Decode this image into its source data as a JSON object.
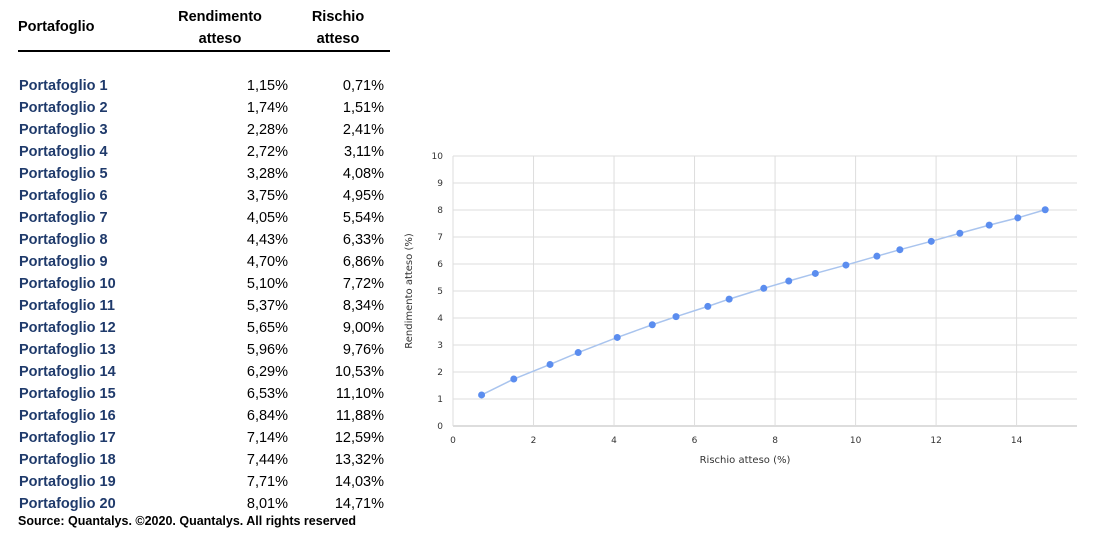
{
  "table": {
    "headers": {
      "name": "Portafoglio",
      "return": [
        "Rendimento",
        "atteso"
      ],
      "risk": [
        "Rischio",
        "atteso"
      ]
    },
    "rows": [
      {
        "name": "Portafoglio 1",
        "return": "1,15%",
        "risk": "0,71%"
      },
      {
        "name": "Portafoglio 2",
        "return": "1,74%",
        "risk": "1,51%"
      },
      {
        "name": "Portafoglio 3",
        "return": "2,28%",
        "risk": "2,41%"
      },
      {
        "name": "Portafoglio 4",
        "return": "2,72%",
        "risk": "3,11%"
      },
      {
        "name": "Portafoglio 5",
        "return": "3,28%",
        "risk": "4,08%"
      },
      {
        "name": "Portafoglio 6",
        "return": "3,75%",
        "risk": "4,95%"
      },
      {
        "name": "Portafoglio 7",
        "return": "4,05%",
        "risk": "5,54%"
      },
      {
        "name": "Portafoglio 8",
        "return": "4,43%",
        "risk": "6,33%"
      },
      {
        "name": "Portafoglio 9",
        "return": "4,70%",
        "risk": "6,86%"
      },
      {
        "name": "Portafoglio 10",
        "return": "5,10%",
        "risk": "7,72%"
      },
      {
        "name": "Portafoglio 11",
        "return": "5,37%",
        "risk": "8,34%"
      },
      {
        "name": "Portafoglio 12",
        "return": "5,65%",
        "risk": "9,00%"
      },
      {
        "name": "Portafoglio 13",
        "return": "5,96%",
        "risk": "9,76%"
      },
      {
        "name": "Portafoglio 14",
        "return": "6,29%",
        "risk": "10,53%"
      },
      {
        "name": "Portafoglio 15",
        "return": "6,53%",
        "risk": "11,10%"
      },
      {
        "name": "Portafoglio 16",
        "return": "6,84%",
        "risk": "11,88%"
      },
      {
        "name": "Portafoglio 17",
        "return": "7,14%",
        "risk": "12,59%"
      },
      {
        "name": "Portafoglio 18",
        "return": "7,44%",
        "risk": "13,32%"
      },
      {
        "name": "Portafoglio 19",
        "return": "7,71%",
        "risk": "14,03%"
      },
      {
        "name": "Portafoglio 20",
        "return": "8,01%",
        "risk": "14,71%"
      }
    ],
    "source": "Source: Quantalys. ©2020. Quantalys. All rights reserved"
  },
  "chart_data": {
    "type": "line",
    "xlabel": "Rischio atteso (%)",
    "ylabel": "Rendimento atteso (%)",
    "xlim": [
      0,
      15.5
    ],
    "ylim": [
      0,
      10
    ],
    "xticks": [
      0,
      2,
      4,
      6,
      8,
      10,
      12,
      14
    ],
    "yticks": [
      0,
      1,
      2,
      3,
      4,
      5,
      6,
      7,
      8,
      9,
      10
    ],
    "grid": true,
    "series": [
      {
        "x": [
          0.71,
          1.51,
          2.41,
          3.11,
          4.08,
          4.95,
          5.54,
          6.33,
          6.86,
          7.72,
          8.34,
          9.0,
          9.76,
          10.53,
          11.1,
          11.88,
          12.59,
          13.32,
          14.03,
          14.71
        ],
        "y": [
          1.15,
          1.74,
          2.28,
          2.72,
          3.28,
          3.75,
          4.05,
          4.43,
          4.7,
          5.1,
          5.37,
          5.65,
          5.96,
          6.29,
          6.53,
          6.84,
          7.14,
          7.44,
          7.71,
          8.01
        ]
      }
    ],
    "colors": {
      "line": "#a9c4ee",
      "point": "#5b8def",
      "grid": "#dddddd",
      "axis": "#bbbbbb",
      "text": "#333333"
    }
  }
}
